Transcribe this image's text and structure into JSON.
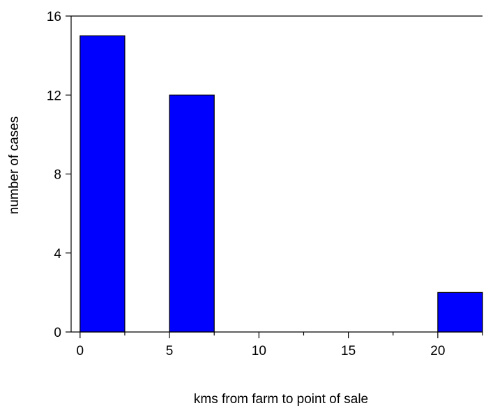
{
  "chart_data": {
    "type": "bar",
    "title": "",
    "xlabel": "kms from farm to point of sale",
    "ylabel": "number of cases",
    "xlim": [
      -0.5,
      22.5
    ],
    "ylim": [
      0,
      16
    ],
    "x_ticks": [
      0,
      5,
      10,
      15,
      20
    ],
    "x_minor_ticks": [
      2.5,
      7.5,
      12.5,
      17.5,
      22.5
    ],
    "y_ticks": [
      0,
      4,
      8,
      12,
      16
    ],
    "bin_width": 2.5,
    "bars": [
      {
        "x_start": 0,
        "x_end": 2.5,
        "value": 15
      },
      {
        "x_start": 5,
        "x_end": 7.5,
        "value": 12
      },
      {
        "x_start": 20,
        "x_end": 22.5,
        "value": 2
      }
    ],
    "bar_color": "#0000ff",
    "bar_edge_color": "#000000",
    "grid": false,
    "legend": "none"
  }
}
